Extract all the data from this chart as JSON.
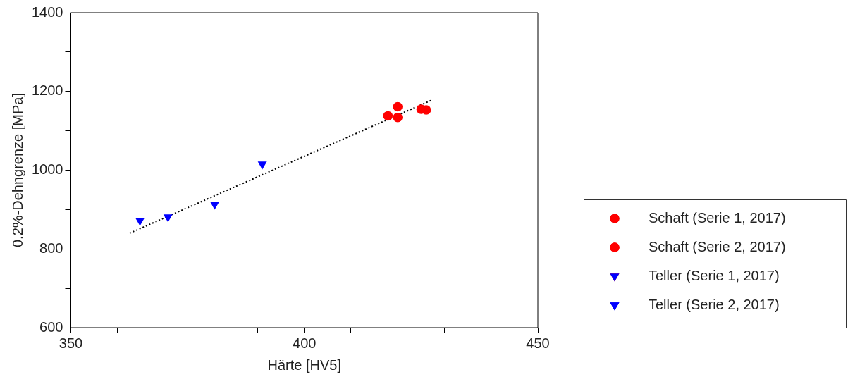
{
  "chart_data": {
    "type": "scatter",
    "xlabel": "Härte [HV5]",
    "ylabel": "0.2%-Dehngrenze [MPa]",
    "xlim": [
      350,
      450
    ],
    "xticks": [
      350,
      {
        "value": 360,
        "label": null
      },
      {
        "value": 370,
        "label": null
      },
      {
        "value": 380,
        "label": null
      },
      {
        "value": 390,
        "label": null
      },
      400,
      {
        "value": 410,
        "label": null
      },
      {
        "value": 420,
        "label": null
      },
      {
        "value": 430,
        "label": null
      },
      {
        "value": 440,
        "label": null
      },
      450
    ],
    "ylim": [
      600,
      1400
    ],
    "yticks": [
      600,
      {
        "value": 700,
        "label": null
      },
      800,
      {
        "value": 900,
        "label": null
      },
      1000,
      {
        "value": 1100,
        "label": null
      },
      1200,
      {
        "value": 1300,
        "label": null
      },
      1400
    ],
    "grid": false,
    "legend": "right",
    "series": [
      {
        "name": "Schaft (Serie 1, 2017)",
        "color": "#ff0000",
        "marker": "circle",
        "x": [
          417.9,
          420.0
        ],
        "values": [
          1138,
          1134
        ]
      },
      {
        "name": "Schaft (Serie 2, 2017)",
        "color": "#ff0000",
        "marker": "circle",
        "x": [
          420.0,
          425.0,
          426.1
        ],
        "values": [
          1161,
          1155,
          1153
        ]
      },
      {
        "name": "Teller (Serie 1, 2017)",
        "color": "#0000ff",
        "marker": "triangle",
        "x": [
          391.0
        ],
        "values": [
          1015
        ]
      },
      {
        "name": "Teller (Serie 2, 2017)",
        "color": "#0000ff",
        "marker": "triangle",
        "x": [
          364.8,
          370.8,
          380.8
        ],
        "values": [
          872,
          881,
          913
        ]
      },
      {
        "type": "line",
        "color": "#000000",
        "marker": "none",
        "line_style": "dotted",
        "x": [
          362.6,
          427.5
        ],
        "values": [
          840,
          1179
        ]
      }
    ]
  }
}
